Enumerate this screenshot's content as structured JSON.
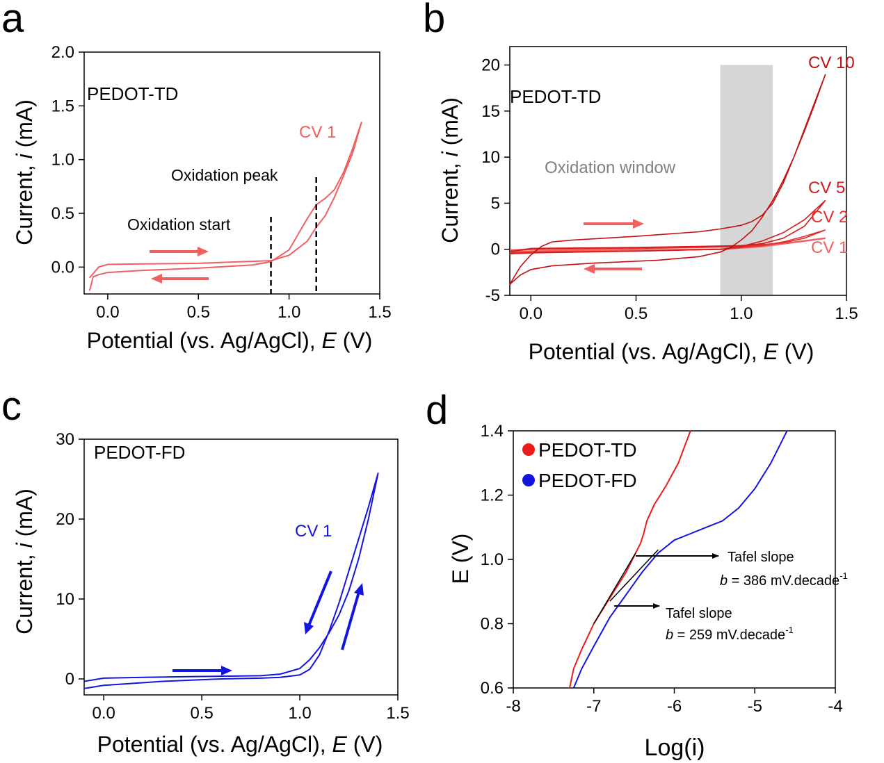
{
  "colors": {
    "axis": "#000000",
    "cv1": "#f06060",
    "cv2": "#e23030",
    "cv5": "#d41c1c",
    "cv10": "#c01010",
    "blue": "#1414e0",
    "td_red": "#ee1a1a",
    "window": "#d6d6d6",
    "window_text": "#808080"
  },
  "chart_data": [
    {
      "panel": "a",
      "type": "line",
      "xlabel_main": "Potential (vs. Ag/AgCl), ",
      "xlabel_var": "E",
      "xlabel_unit": " (V)",
      "ylabel_main": "Current, ",
      "ylabel_var": "i",
      "ylabel_unit": " (mA)",
      "xlim": [
        -0.13,
        1.5
      ],
      "ylim": [
        -0.25,
        2.0
      ],
      "xticks": [
        0.0,
        0.5,
        1.0,
        1.5
      ],
      "xtick_labels": [
        "0.0",
        "0.5",
        "1.0",
        "1.5"
      ],
      "yticks": [
        0.0,
        0.5,
        1.0,
        1.5,
        2.0
      ],
      "ytick_labels": [
        "0.0",
        "0.5",
        "1.0",
        "1.5",
        "2.0"
      ],
      "sample_label": "PEDOT-TD",
      "series": [
        {
          "name": "CV 1",
          "forward": [
            [
              -0.1,
              -0.22
            ],
            [
              -0.08,
              -0.09
            ],
            [
              -0.05,
              -0.07
            ],
            [
              0.0,
              -0.05
            ],
            [
              0.2,
              -0.03
            ],
            [
              0.5,
              -0.01
            ],
            [
              0.8,
              0.02
            ],
            [
              0.9,
              0.05
            ],
            [
              1.0,
              0.16
            ],
            [
              1.1,
              0.45
            ],
            [
              1.15,
              0.58
            ],
            [
              1.2,
              0.64
            ],
            [
              1.25,
              0.72
            ],
            [
              1.3,
              0.88
            ],
            [
              1.35,
              1.1
            ],
            [
              1.4,
              1.35
            ]
          ],
          "reverse": [
            [
              1.4,
              1.35
            ],
            [
              1.35,
              1.06
            ],
            [
              1.3,
              0.85
            ],
            [
              1.25,
              0.65
            ],
            [
              1.2,
              0.48
            ],
            [
              1.15,
              0.37
            ],
            [
              1.1,
              0.24
            ],
            [
              1.0,
              0.11
            ],
            [
              0.9,
              0.06
            ],
            [
              0.5,
              0.035
            ],
            [
              0.2,
              0.03
            ],
            [
              0.0,
              0.025
            ],
            [
              -0.05,
              0.0
            ],
            [
              -0.08,
              -0.06
            ],
            [
              -0.1,
              -0.1
            ]
          ]
        }
      ],
      "annotations": {
        "cv1_label": "CV 1",
        "oxidation_start_label": "Oxidation start",
        "oxidation_start_x": 0.9,
        "oxidation_peak_label": "Oxidation peak",
        "oxidation_peak_x": 1.15
      }
    },
    {
      "panel": "b",
      "type": "line",
      "xlabel_main": "Potential (vs. Ag/AgCl), ",
      "xlabel_var": "E",
      "xlabel_unit": " (V)",
      "ylabel_main": "Current, ",
      "ylabel_var": "i",
      "ylabel_unit": " (mA)",
      "xlim": [
        -0.1,
        1.5
      ],
      "ylim": [
        -5,
        22
      ],
      "xticks": [
        0.0,
        0.5,
        1.0,
        1.5
      ],
      "xtick_labels": [
        "0.0",
        "0.5",
        "1.0",
        "1.5"
      ],
      "yticks": [
        -5,
        0,
        5,
        10,
        15,
        20
      ],
      "ytick_labels": [
        "-5",
        "0",
        "5",
        "10",
        "15",
        "20"
      ],
      "sample_label": "PEDOT-TD",
      "window_label": "Oxidation window",
      "window_range": [
        0.9,
        1.15
      ],
      "series": [
        {
          "name": "CV 1",
          "forward": [
            [
              -0.1,
              -0.3
            ],
            [
              0.0,
              -0.2
            ],
            [
              0.5,
              -0.1
            ],
            [
              0.9,
              0.0
            ],
            [
              1.1,
              0.3
            ],
            [
              1.2,
              0.6
            ],
            [
              1.3,
              0.9
            ],
            [
              1.4,
              1.2
            ]
          ],
          "reverse": [
            [
              1.4,
              1.2
            ],
            [
              1.2,
              0.6
            ],
            [
              1.0,
              0.3
            ],
            [
              0.5,
              0.1
            ],
            [
              0.0,
              0.0
            ],
            [
              -0.1,
              -0.1
            ]
          ]
        },
        {
          "name": "CV 2",
          "forward": [
            [
              -0.1,
              -0.4
            ],
            [
              0.0,
              -0.3
            ],
            [
              0.5,
              -0.2
            ],
            [
              0.9,
              0.0
            ],
            [
              1.1,
              0.4
            ],
            [
              1.2,
              0.8
            ],
            [
              1.3,
              1.4
            ],
            [
              1.4,
              2.1
            ]
          ],
          "reverse": [
            [
              1.4,
              2.1
            ],
            [
              1.3,
              1.2
            ],
            [
              1.2,
              0.7
            ],
            [
              1.0,
              0.3
            ],
            [
              0.5,
              0.1
            ],
            [
              0.0,
              0.0
            ],
            [
              -0.1,
              -0.2
            ]
          ]
        },
        {
          "name": "CV 5",
          "forward": [
            [
              -0.1,
              -0.5
            ],
            [
              0.0,
              -0.4
            ],
            [
              0.5,
              -0.2
            ],
            [
              0.9,
              0.0
            ],
            [
              1.0,
              0.3
            ],
            [
              1.1,
              0.9
            ],
            [
              1.2,
              1.8
            ],
            [
              1.3,
              3.2
            ],
            [
              1.4,
              5.3
            ]
          ],
          "reverse": [
            [
              1.4,
              5.3
            ],
            [
              1.3,
              2.5
            ],
            [
              1.2,
              1.2
            ],
            [
              1.1,
              0.6
            ],
            [
              1.0,
              0.4
            ],
            [
              0.5,
              0.2
            ],
            [
              0.0,
              0.1
            ],
            [
              -0.1,
              -0.3
            ]
          ]
        },
        {
          "name": "CV 10",
          "forward": [
            [
              -0.1,
              -3.8
            ],
            [
              -0.05,
              -2.8
            ],
            [
              0.0,
              -2.2
            ],
            [
              0.1,
              -1.8
            ],
            [
              0.3,
              -1.5
            ],
            [
              0.6,
              -1.2
            ],
            [
              0.8,
              -0.8
            ],
            [
              0.9,
              -0.3
            ],
            [
              0.95,
              0.2
            ],
            [
              1.0,
              1.0
            ],
            [
              1.05,
              2.0
            ],
            [
              1.1,
              3.5
            ],
            [
              1.15,
              5.3
            ],
            [
              1.2,
              7.5
            ],
            [
              1.25,
              10.0
            ],
            [
              1.3,
              12.8
            ],
            [
              1.35,
              15.8
            ],
            [
              1.4,
              19.0
            ]
          ],
          "reverse": [
            [
              1.4,
              19.0
            ],
            [
              1.35,
              16.0
            ],
            [
              1.3,
              13.0
            ],
            [
              1.25,
              10.0
            ],
            [
              1.2,
              7.2
            ],
            [
              1.15,
              5.0
            ],
            [
              1.1,
              3.7
            ],
            [
              1.05,
              3.0
            ],
            [
              1.0,
              2.6
            ],
            [
              0.9,
              2.2
            ],
            [
              0.8,
              1.9
            ],
            [
              0.5,
              1.4
            ],
            [
              0.2,
              1.0
            ],
            [
              0.1,
              0.8
            ],
            [
              0.05,
              0.3
            ],
            [
              0.0,
              -0.6
            ],
            [
              -0.05,
              -1.9
            ],
            [
              -0.1,
              -3.8
            ]
          ]
        }
      ],
      "annotations": {
        "cv10_label": "CV 10",
        "cv5_label": "CV 5",
        "cv2_label": "CV 2",
        "cv1_label": "CV 1"
      }
    },
    {
      "panel": "c",
      "type": "line",
      "xlabel_main": "Potential (vs. Ag/AgCl), ",
      "xlabel_var": "E",
      "xlabel_unit": " (V)",
      "ylabel_main": "Current, ",
      "ylabel_var": "i",
      "ylabel_unit": " (mA)",
      "xlim": [
        -0.1,
        1.5
      ],
      "ylim": [
        -2,
        30
      ],
      "xticks": [
        0.0,
        0.5,
        1.0,
        1.5
      ],
      "xtick_labels": [
        "0.0",
        "0.5",
        "1.0",
        "1.5"
      ],
      "yticks": [
        0,
        10,
        20,
        30
      ],
      "ytick_labels": [
        "0",
        "10",
        "20",
        "30"
      ],
      "sample_label": "PEDOT-FD",
      "series": [
        {
          "name": "CV 1",
          "forward": [
            [
              -0.1,
              -1.2
            ],
            [
              0.0,
              -0.8
            ],
            [
              0.3,
              -0.3
            ],
            [
              0.6,
              0.0
            ],
            [
              0.8,
              0.1
            ],
            [
              0.9,
              0.2
            ],
            [
              1.0,
              0.5
            ],
            [
              1.05,
              1.2
            ],
            [
              1.1,
              3.0
            ],
            [
              1.15,
              6.0
            ],
            [
              1.2,
              9.5
            ],
            [
              1.25,
              13.5
            ],
            [
              1.3,
              17.5
            ],
            [
              1.35,
              21.5
            ],
            [
              1.4,
              25.8
            ]
          ],
          "reverse": [
            [
              1.4,
              25.8
            ],
            [
              1.35,
              20.0
            ],
            [
              1.3,
              15.0
            ],
            [
              1.25,
              11.0
            ],
            [
              1.2,
              8.0
            ],
            [
              1.15,
              5.8
            ],
            [
              1.1,
              3.9
            ],
            [
              1.05,
              2.4
            ],
            [
              1.0,
              1.3
            ],
            [
              0.9,
              0.6
            ],
            [
              0.8,
              0.4
            ],
            [
              0.5,
              0.3
            ],
            [
              0.2,
              0.2
            ],
            [
              0.0,
              0.1
            ],
            [
              -0.1,
              -0.3
            ]
          ]
        }
      ],
      "annotations": {
        "cv1_label": "CV 1"
      }
    },
    {
      "panel": "d",
      "type": "line",
      "xlabel": "Log(i)",
      "ylabel": "E (V)",
      "xlim": [
        -8,
        -4
      ],
      "ylim": [
        0.6,
        1.4
      ],
      "xticks": [
        -8,
        -7,
        -6,
        -5,
        -4
      ],
      "xtick_labels": [
        "-8",
        "-7",
        "-6",
        "-5",
        "-4"
      ],
      "yticks": [
        0.6,
        0.8,
        1.0,
        1.2,
        1.4
      ],
      "ytick_labels": [
        "0.6",
        "0.8",
        "1.0",
        "1.2",
        "1.4"
      ],
      "legend": [
        "PEDOT-TD",
        "PEDOT-FD"
      ],
      "series": [
        {
          "name": "PEDOT-TD",
          "points": [
            [
              -7.3,
              0.6
            ],
            [
              -7.25,
              0.66
            ],
            [
              -7.15,
              0.72
            ],
            [
              -7.0,
              0.8
            ],
            [
              -6.8,
              0.88
            ],
            [
              -6.6,
              0.96
            ],
            [
              -6.48,
              1.02
            ],
            [
              -6.42,
              1.05
            ],
            [
              -6.38,
              1.08
            ],
            [
              -6.34,
              1.12
            ],
            [
              -6.25,
              1.17
            ],
            [
              -6.1,
              1.23
            ],
            [
              -5.95,
              1.3
            ],
            [
              -5.8,
              1.4
            ]
          ]
        },
        {
          "name": "PEDOT-FD",
          "points": [
            [
              -7.25,
              0.6
            ],
            [
              -7.15,
              0.66
            ],
            [
              -7.0,
              0.73
            ],
            [
              -6.8,
              0.82
            ],
            [
              -6.6,
              0.89
            ],
            [
              -6.4,
              0.96
            ],
            [
              -6.2,
              1.02
            ],
            [
              -6.0,
              1.06
            ],
            [
              -5.8,
              1.08
            ],
            [
              -5.6,
              1.1
            ],
            [
              -5.4,
              1.12
            ],
            [
              -5.2,
              1.16
            ],
            [
              -5.0,
              1.22
            ],
            [
              -4.8,
              1.3
            ],
            [
              -4.6,
              1.4
            ]
          ]
        }
      ],
      "fits": [
        {
          "name": "TD fit",
          "from": [
            -7.0,
            0.8
          ],
          "to": [
            -6.48,
            1.02
          ]
        },
        {
          "name": "FD fit",
          "from": [
            -6.8,
            0.87
          ],
          "to": [
            -6.2,
            1.03
          ]
        }
      ],
      "annotations": {
        "tafel1_title": "Tafel slope",
        "tafel1_b": "b",
        "tafel1_value": " = 386 mV.decade",
        "tafel1_exp": "-1",
        "tafel2_title": "Tafel slope",
        "tafel2_b": "b",
        "tafel2_value": " = 259 mV.decade",
        "tafel2_exp": "-1"
      }
    }
  ],
  "panel_letters": [
    "a",
    "b",
    "c",
    "d"
  ]
}
